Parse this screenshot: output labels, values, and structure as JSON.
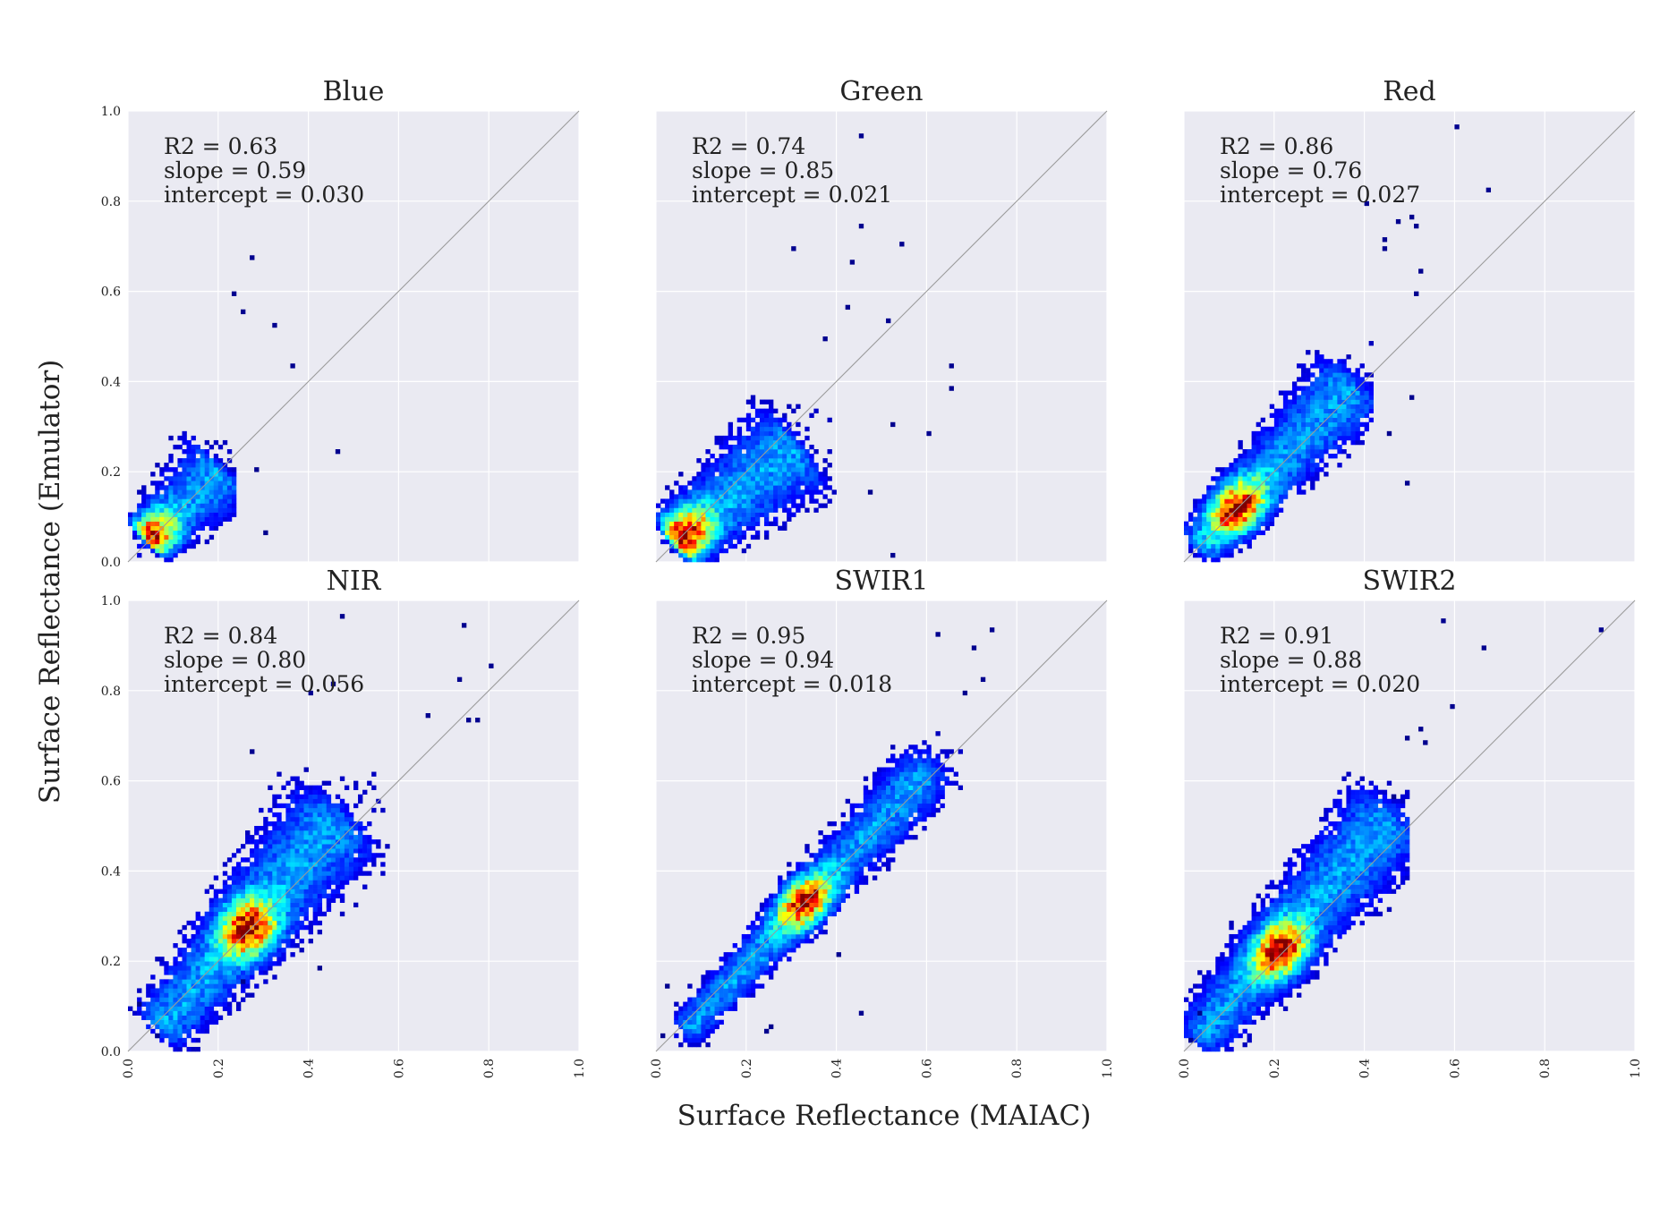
{
  "figure": {
    "xlabel": "Surface Reflectance (MAIAC)",
    "ylabel": "Surface Reflectance (Emulator)"
  },
  "colors": {
    "panel_bg": "#eaeaf2",
    "grid": "#ffffff",
    "identity_line": "#9a9a9a",
    "colormap": [
      "#00008f",
      "#0000ff",
      "#0080ff",
      "#00ffff",
      "#80ff80",
      "#ffff00",
      "#ff8000",
      "#ff0000",
      "#800000"
    ]
  },
  "chart_data": [
    {
      "type": "heatmap",
      "title": "Blue",
      "xlim": [
        0,
        1
      ],
      "ylim": [
        0,
        1
      ],
      "xticks": [
        "0.0",
        "0.2",
        "0.4",
        "0.6",
        "0.8",
        "1.0"
      ],
      "yticks": [
        "0.0",
        "0.2",
        "0.4",
        "0.6",
        "0.8",
        "1.0"
      ],
      "show_xticks": false,
      "show_yticks": true,
      "R2": "0.63",
      "slope": "0.59",
      "intercept": "0.030",
      "ann": [
        "R2 = 0.63",
        "slope = 0.59",
        "intercept = 0.030"
      ],
      "identity_line": true,
      "density": {
        "center": [
          0.05,
          0.05
        ],
        "end": [
          0.2,
          0.2
        ],
        "width": 0.04,
        "max_x": 0.24,
        "max_y": 0.5,
        "peak": [
          0.04,
          0.05
        ]
      },
      "outliers": [
        [
          0.27,
          0.67
        ],
        [
          0.23,
          0.59
        ],
        [
          0.32,
          0.52
        ],
        [
          0.36,
          0.43
        ],
        [
          0.46,
          0.24
        ],
        [
          0.29,
          0.2
        ],
        [
          0.3,
          0.06
        ],
        [
          0.25,
          0.55
        ]
      ]
    },
    {
      "type": "heatmap",
      "title": "Green",
      "xlim": [
        0,
        1
      ],
      "ylim": [
        0,
        1
      ],
      "xticks": [
        "0.0",
        "0.2",
        "0.4",
        "0.6",
        "0.8",
        "1.0"
      ],
      "yticks": [
        "0.0",
        "0.2",
        "0.4",
        "0.6",
        "0.8",
        "1.0"
      ],
      "show_xticks": false,
      "show_yticks": false,
      "R2": "0.74",
      "slope": "0.85",
      "intercept": "0.021",
      "ann": [
        "R2 = 0.74",
        "slope = 0.85",
        "intercept = 0.021"
      ],
      "identity_line": true,
      "density": {
        "center": [
          0.05,
          0.05
        ],
        "end": [
          0.3,
          0.25
        ],
        "width": 0.05,
        "max_x": 0.4,
        "max_y": 0.5,
        "peak": [
          0.06,
          0.06
        ]
      },
      "outliers": [
        [
          0.45,
          0.94
        ],
        [
          0.45,
          0.74
        ],
        [
          0.54,
          0.7
        ],
        [
          0.3,
          0.69
        ],
        [
          0.43,
          0.66
        ],
        [
          0.42,
          0.57
        ],
        [
          0.51,
          0.53
        ],
        [
          0.65,
          0.43
        ],
        [
          0.65,
          0.38
        ],
        [
          0.6,
          0.29
        ],
        [
          0.52,
          0.3
        ],
        [
          0.47,
          0.15
        ],
        [
          0.52,
          0.01
        ],
        [
          0.37,
          0.49
        ]
      ]
    },
    {
      "type": "heatmap",
      "title": "Red",
      "xlim": [
        0,
        1
      ],
      "ylim": [
        0,
        1
      ],
      "xticks": [
        "0.0",
        "0.2",
        "0.4",
        "0.6",
        "0.8",
        "1.0"
      ],
      "yticks": [
        "0.0",
        "0.2",
        "0.4",
        "0.6",
        "0.8",
        "1.0"
      ],
      "show_xticks": false,
      "show_yticks": false,
      "R2": "0.86",
      "slope": "0.76",
      "intercept": "0.027",
      "ann": [
        "R2 = 0.86",
        "slope = 0.76",
        "intercept = 0.027"
      ],
      "identity_line": true,
      "density": {
        "center": [
          0.04,
          0.04
        ],
        "end": [
          0.36,
          0.38
        ],
        "width": 0.04,
        "max_x": 0.42,
        "max_y": 0.75,
        "peak": [
          0.12,
          0.12
        ]
      },
      "outliers": [
        [
          0.6,
          0.96
        ],
        [
          0.67,
          0.82
        ],
        [
          0.4,
          0.79
        ],
        [
          0.5,
          0.76
        ],
        [
          0.51,
          0.74
        ],
        [
          0.47,
          0.75
        ],
        [
          0.44,
          0.69
        ],
        [
          0.52,
          0.64
        ],
        [
          0.51,
          0.59
        ],
        [
          0.5,
          0.36
        ],
        [
          0.45,
          0.29
        ],
        [
          0.49,
          0.17
        ],
        [
          0.44,
          0.71
        ]
      ]
    },
    {
      "type": "heatmap",
      "title": "NIR",
      "xlim": [
        0,
        1
      ],
      "ylim": [
        0,
        1
      ],
      "xticks": [
        "0.0",
        "0.2",
        "0.4",
        "0.6",
        "0.8",
        "1.0"
      ],
      "yticks": [
        "0.0",
        "0.2",
        "0.4",
        "0.6",
        "0.8",
        "1.0"
      ],
      "show_xticks": true,
      "show_yticks": true,
      "R2": "0.84",
      "slope": "0.80",
      "intercept": "0.056",
      "ann": [
        "R2 = 0.84",
        "slope = 0.80",
        "intercept = 0.056"
      ],
      "identity_line": true,
      "density": {
        "center": [
          0.08,
          0.06
        ],
        "end": [
          0.45,
          0.5
        ],
        "width": 0.05,
        "max_x": 0.62,
        "max_y": 0.7,
        "peak": [
          0.27,
          0.27
        ]
      },
      "outliers": [
        [
          0.47,
          0.96
        ],
        [
          0.74,
          0.94
        ],
        [
          0.8,
          0.85
        ],
        [
          0.73,
          0.82
        ],
        [
          0.45,
          0.81
        ],
        [
          0.4,
          0.79
        ],
        [
          0.75,
          0.73
        ],
        [
          0.77,
          0.73
        ],
        [
          0.66,
          0.74
        ],
        [
          0.27,
          0.66
        ],
        [
          0.25,
          0.15
        ],
        [
          0.42,
          0.18
        ],
        [
          0.02,
          0.1
        ],
        [
          0.06,
          0.03
        ]
      ]
    },
    {
      "type": "heatmap",
      "title": "SWIR1",
      "xlim": [
        0,
        1
      ],
      "ylim": [
        0,
        1
      ],
      "xticks": [
        "0.0",
        "0.2",
        "0.4",
        "0.6",
        "0.8",
        "1.0"
      ],
      "yticks": [
        "0.0",
        "0.2",
        "0.4",
        "0.6",
        "0.8",
        "1.0"
      ],
      "show_xticks": true,
      "show_yticks": false,
      "R2": "0.95",
      "slope": "0.94",
      "intercept": "0.018",
      "ann": [
        "R2 = 0.95",
        "slope = 0.94",
        "intercept = 0.018"
      ],
      "identity_line": true,
      "density": {
        "center": [
          0.08,
          0.06
        ],
        "end": [
          0.58,
          0.6
        ],
        "width": 0.03,
        "max_x": 0.72,
        "max_y": 0.8,
        "peak": [
          0.33,
          0.33
        ]
      },
      "outliers": [
        [
          0.62,
          0.92
        ],
        [
          0.74,
          0.93
        ],
        [
          0.7,
          0.89
        ],
        [
          0.72,
          0.82
        ],
        [
          0.68,
          0.79
        ],
        [
          0.25,
          0.05
        ],
        [
          0.24,
          0.04
        ],
        [
          0.4,
          0.21
        ],
        [
          0.02,
          0.14
        ],
        [
          0.01,
          0.03
        ],
        [
          0.45,
          0.08
        ]
      ]
    },
    {
      "type": "heatmap",
      "title": "SWIR2",
      "xlim": [
        0,
        1
      ],
      "ylim": [
        0,
        1
      ],
      "xticks": [
        "0.0",
        "0.2",
        "0.4",
        "0.6",
        "0.8",
        "1.0"
      ],
      "yticks": [
        "0.0",
        "0.2",
        "0.4",
        "0.6",
        "0.8",
        "1.0"
      ],
      "show_xticks": true,
      "show_yticks": false,
      "R2": "0.91",
      "slope": "0.88",
      "intercept": "0.020",
      "ann": [
        "R2 = 0.91",
        "slope = 0.88",
        "intercept = 0.020"
      ],
      "identity_line": true,
      "density": {
        "center": [
          0.04,
          0.04
        ],
        "end": [
          0.44,
          0.5
        ],
        "width": 0.045,
        "max_x": 0.5,
        "max_y": 0.74,
        "peak": [
          0.22,
          0.22
        ]
      },
      "outliers": [
        [
          0.58,
          0.95
        ],
        [
          0.66,
          0.89
        ],
        [
          0.92,
          0.93
        ],
        [
          0.59,
          0.76
        ],
        [
          0.52,
          0.71
        ],
        [
          0.53,
          0.68
        ],
        [
          0.49,
          0.69
        ],
        [
          0.46,
          0.57
        ],
        [
          0.03,
          0.08
        ],
        [
          0.01,
          0.02
        ]
      ]
    }
  ]
}
